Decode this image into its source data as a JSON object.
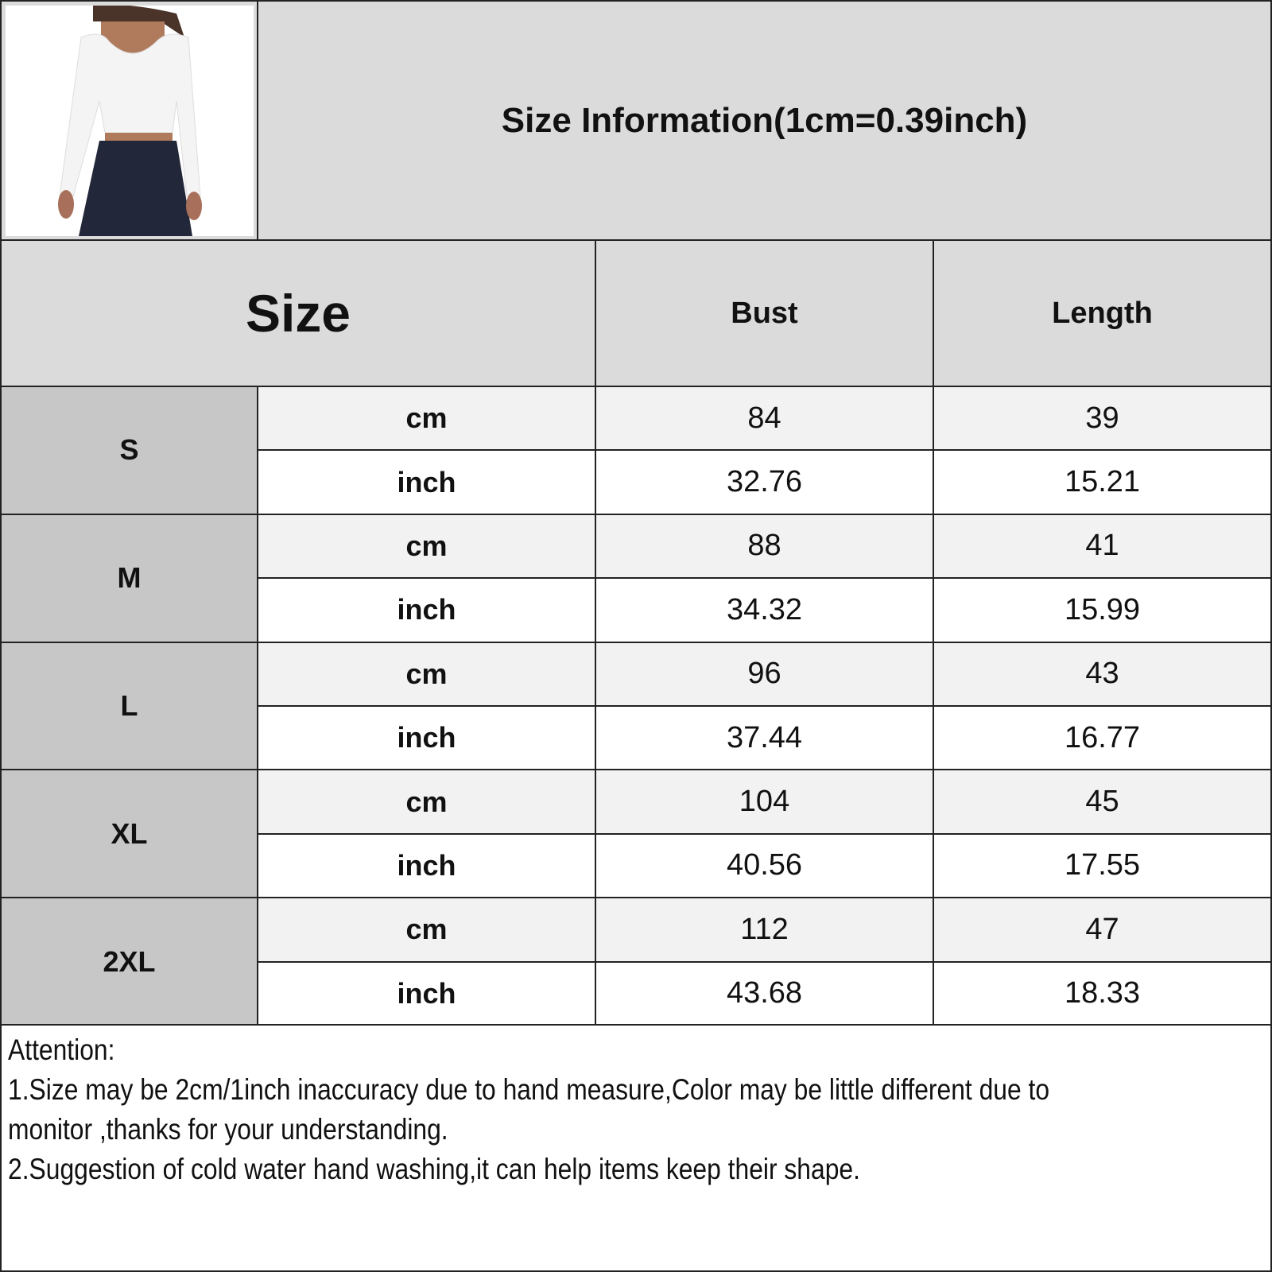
{
  "title": "Size Information(1cm=0.39inch)",
  "header": {
    "size": "Size",
    "bust": "Bust",
    "length": "Length"
  },
  "rows": [
    {
      "size": "S",
      "cm": {
        "unit": "cm",
        "bust": "84",
        "length": "39"
      },
      "inch": {
        "unit": "inch",
        "bust": "32.76",
        "length": "15.21"
      }
    },
    {
      "size": "M",
      "cm": {
        "unit": "cm",
        "bust": "88",
        "length": "41"
      },
      "inch": {
        "unit": "inch",
        "bust": "34.32",
        "length": "15.99"
      }
    },
    {
      "size": "L",
      "cm": {
        "unit": "cm",
        "bust": "96",
        "length": "43"
      },
      "inch": {
        "unit": "inch",
        "bust": "37.44",
        "length": "16.77"
      }
    },
    {
      "size": "XL",
      "cm": {
        "unit": "cm",
        "bust": "104",
        "length": "45"
      },
      "inch": {
        "unit": "inch",
        "bust": "40.56",
        "length": "17.55"
      }
    },
    {
      "size": "2XL",
      "cm": {
        "unit": "cm",
        "bust": "112",
        "length": "47"
      },
      "inch": {
        "unit": "inch",
        "bust": "43.68",
        "length": "18.33"
      }
    }
  ],
  "attention": {
    "heading": "Attention:",
    "line1": "1.Size may be 2cm/1inch inaccuracy due to hand measure,Color may be little different due to",
    "line2": "monitor ,thanks for your understanding.",
    "line3": "2.Suggestion of cold water hand washing,it can help items keep their shape."
  },
  "colors": {
    "header_bg": "#dcdbdc",
    "size_col_bg": "#c8c7c7",
    "cm_row_bg": "#f2f2f2",
    "inch_row_bg": "#ffffff",
    "border": "#222222"
  }
}
